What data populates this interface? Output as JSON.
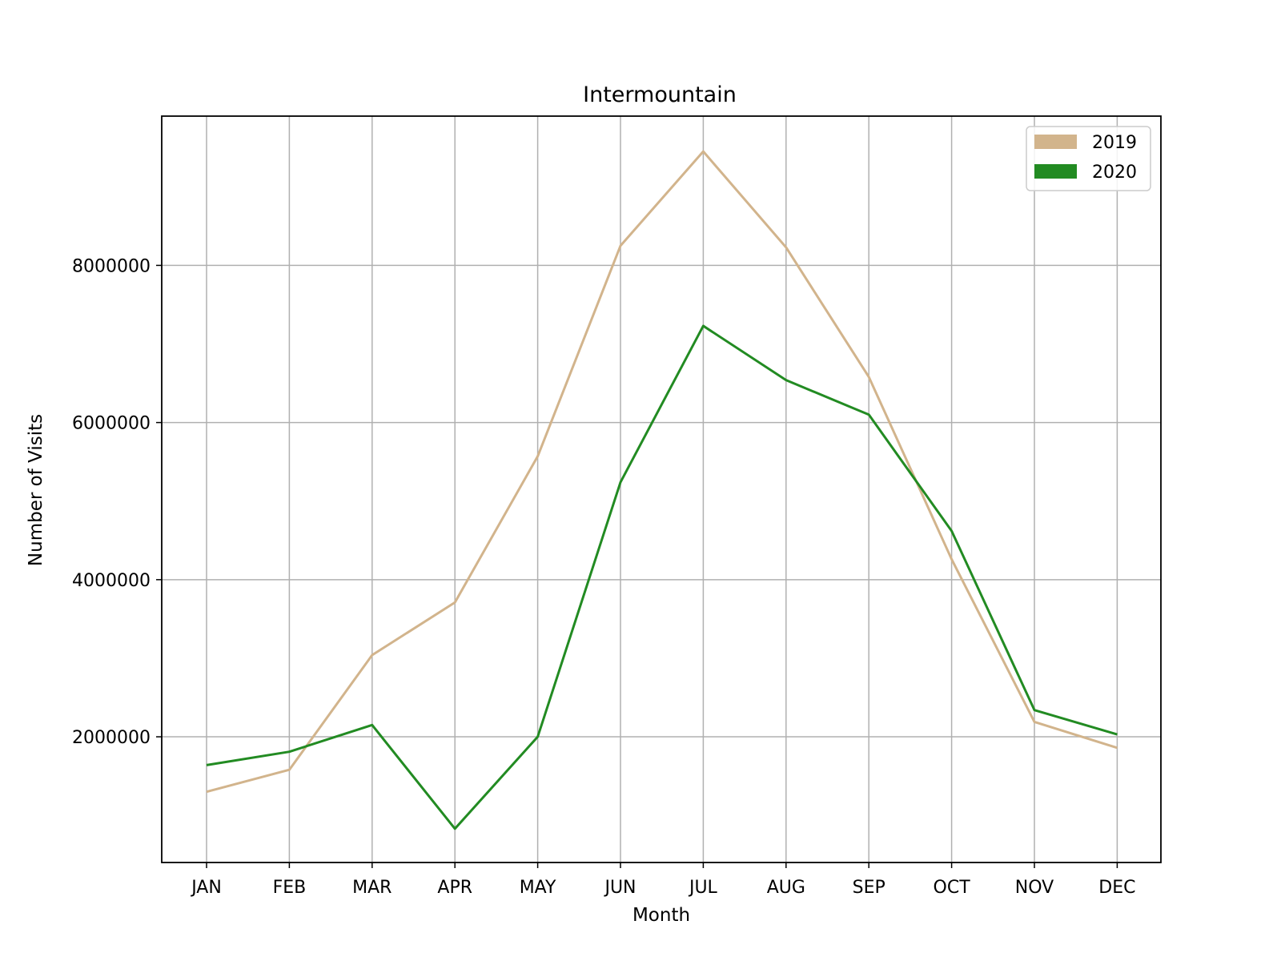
{
  "chart_data": {
    "type": "line",
    "title": "Intermountain",
    "xlabel": "Month",
    "ylabel": "Number of Visits",
    "categories": [
      "JAN",
      "FEB",
      "MAR",
      "APR",
      "MAY",
      "JUN",
      "JUL",
      "AUG",
      "SEP",
      "OCT",
      "NOV",
      "DEC"
    ],
    "yticks": [
      2000000,
      4000000,
      6000000,
      8000000
    ],
    "ytick_labels": [
      "2000000",
      "4000000",
      "6000000",
      "8000000"
    ],
    "ylim": [
      400000,
      9900000
    ],
    "grid": true,
    "legend_position": "top-right",
    "series": [
      {
        "name": "2019",
        "color": "#d2b48c",
        "values": [
          1300000,
          1580000,
          3040000,
          3710000,
          5570000,
          8250000,
          9450000,
          8230000,
          6580000,
          4260000,
          2190000,
          1860000
        ]
      },
      {
        "name": "2020",
        "color": "#228b22",
        "values": [
          1640000,
          1810000,
          2150000,
          830000,
          2000000,
          5240000,
          7230000,
          6540000,
          6100000,
          4620000,
          2340000,
          2030000
        ]
      }
    ]
  }
}
